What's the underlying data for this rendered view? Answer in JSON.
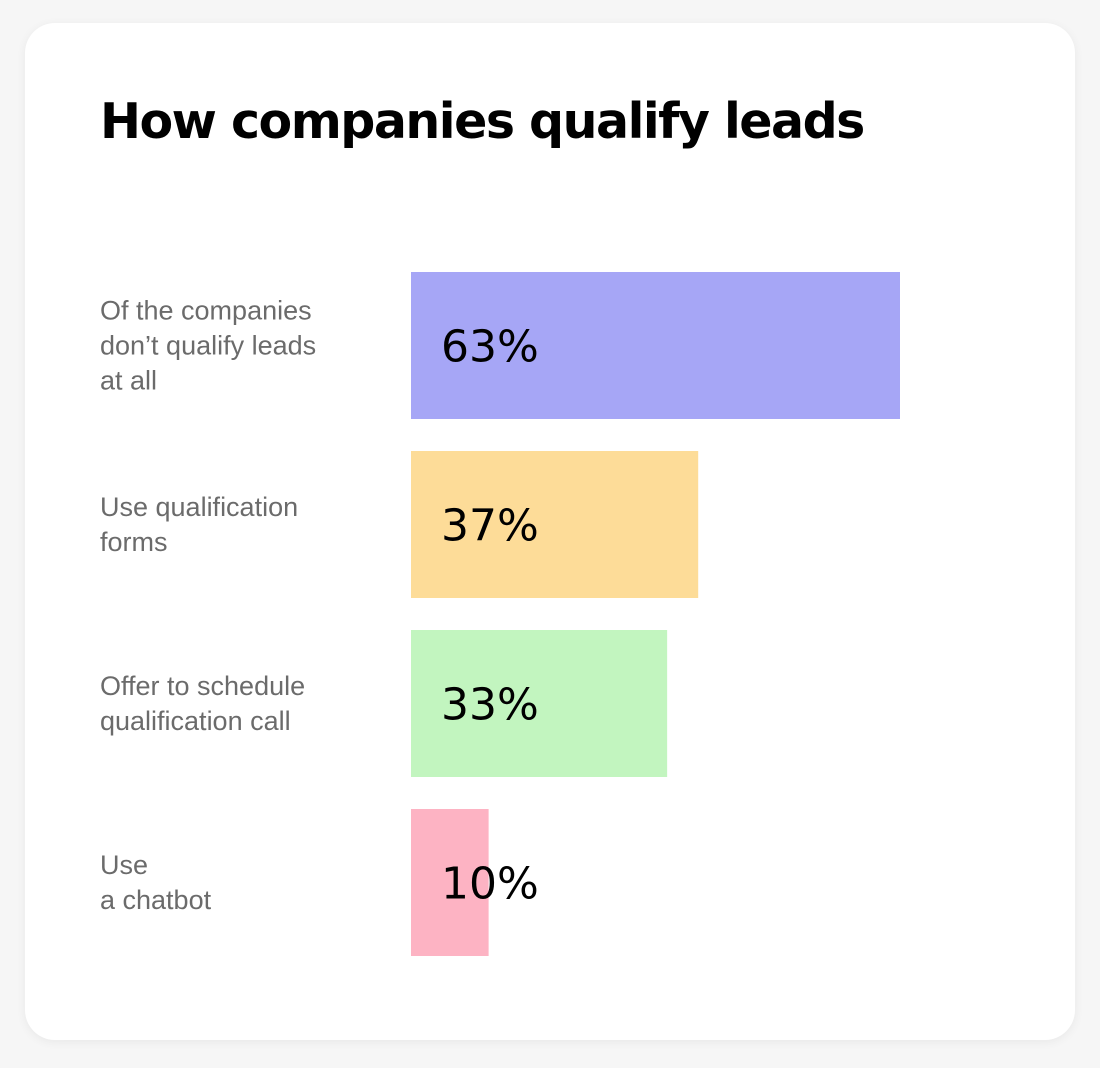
{
  "chart_data": {
    "type": "bar",
    "orientation": "horizontal",
    "title": "How companies qualify leads",
    "categories": [
      [
        "Of the companies",
        "don’t qualify leads",
        "at all"
      ],
      [
        "Use qualification",
        "forms"
      ],
      [
        "Offer to schedule",
        "qualification call"
      ],
      [
        "Use",
        "a chatbot"
      ]
    ],
    "values": [
      63,
      37,
      33,
      10
    ],
    "value_labels": [
      "63%",
      "37%",
      "33%",
      "10%"
    ],
    "colors": [
      "#a6a6f6",
      "#fddc98",
      "#c2f5bf",
      "#fdb3c3"
    ],
    "xlim": [
      0,
      63
    ],
    "grid": false,
    "legend": "none"
  }
}
